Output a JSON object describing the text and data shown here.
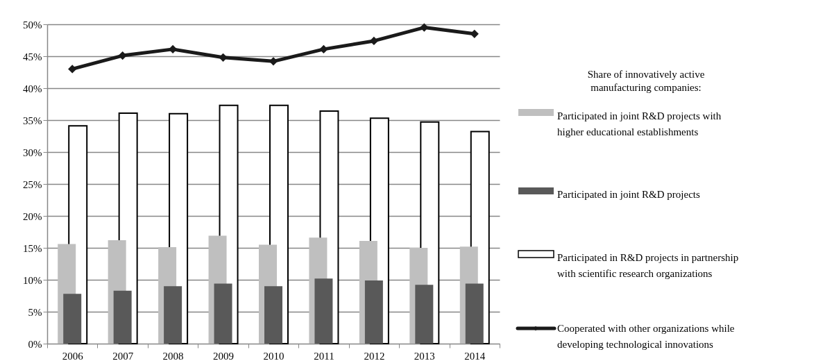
{
  "chart_data": {
    "type": "bar",
    "legend_title": "Share of innovatively active manufacturing companies:",
    "categories": [
      "2006",
      "2007",
      "2008",
      "2009",
      "2010",
      "2011",
      "2012",
      "2013",
      "2014"
    ],
    "series": [
      {
        "name": "Participated in joint R&D projects with higher educational establishments",
        "color": "#bfbfbf",
        "values": [
          15.6,
          16.2,
          15.1,
          16.9,
          15.5,
          16.6,
          16.1,
          15.0,
          15.2
        ]
      },
      {
        "name": "Participated in joint R&D projects",
        "color": "#595959",
        "values": [
          7.8,
          8.3,
          9.0,
          9.4,
          9.0,
          10.2,
          9.9,
          9.2,
          9.4
        ]
      },
      {
        "name": "Participated in R&D projects in partnership with scientific research organizations",
        "color": "#ffffff",
        "values": [
          34.1,
          36.1,
          36.0,
          37.3,
          37.3,
          36.4,
          35.3,
          34.7,
          33.2
        ]
      },
      {
        "name": "Cooperated with other organizations while developing technological innovations",
        "type": "line",
        "color": "#1a1a1a",
        "marker": "diamond",
        "line_style": "solid",
        "values": [
          43.0,
          45.1,
          46.1,
          44.8,
          44.2,
          46.1,
          47.4,
          49.5,
          48.5
        ]
      }
    ],
    "ylim": [
      0,
      50
    ],
    "yticks": [
      {
        "value": 0,
        "label": "0%"
      },
      {
        "value": 5,
        "label": "5%"
      },
      {
        "value": 10,
        "label": "10%"
      },
      {
        "value": 15,
        "label": "15%"
      },
      {
        "value": 20,
        "label": "20%"
      },
      {
        "value": 25,
        "label": "25%"
      },
      {
        "value": 30,
        "label": "30%"
      },
      {
        "value": 35,
        "label": "35%"
      },
      {
        "value": 40,
        "label": "40%"
      },
      {
        "value": 45,
        "label": "45%"
      },
      {
        "value": 50,
        "label": "50%"
      }
    ],
    "grid": "y",
    "legend": "right"
  }
}
